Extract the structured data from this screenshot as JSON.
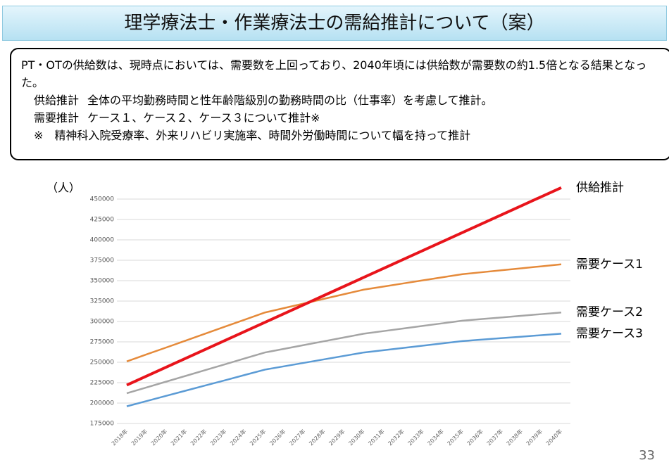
{
  "header": {
    "title": "理学療法士・作業療法士の需給推計について（案）"
  },
  "summary": {
    "lead": "PT・OTの供給数は、現時点においては、需要数を上回っており、2040年頃には供給数が需要数の約1.5倍となる結果となった。",
    "items": [
      {
        "label": "供給推計",
        "text": "全体の平均勤務時間と性年齢階級別の勤務時間の比（仕事率）を考慮して推計。"
      },
      {
        "label": "需要推計",
        "text": "ケース１、ケース２、ケース３について推計※"
      }
    ],
    "note": "※　精神科入院受療率、外来リハビリ実施率、時間外労働時間について幅を持って推計"
  },
  "chart_data": {
    "type": "line",
    "y_label": "（人）",
    "categories": [
      "2018年",
      "2019年",
      "2020年",
      "2021年",
      "2022年",
      "2023年",
      "2024年",
      "2025年",
      "2026年",
      "2027年",
      "2028年",
      "2029年",
      "2030年",
      "2031年",
      "2032年",
      "2033年",
      "2034年",
      "2035年",
      "2036年",
      "2037年",
      "2038年",
      "2039年",
      "2040年"
    ],
    "series": [
      {
        "name": "需要ケース1",
        "color": "#e58a3a",
        "values": [
          251000,
          259600,
          268100,
          276700,
          285300,
          293900,
          302400,
          311000,
          316600,
          322200,
          327800,
          333400,
          339000,
          342800,
          346600,
          350400,
          354200,
          358000,
          360400,
          362800,
          365200,
          367600,
          370000
        ]
      },
      {
        "name": "需要ケース2",
        "color": "#a5a5a5",
        "values": [
          212000,
          219100,
          226300,
          233400,
          240600,
          247700,
          254900,
          262000,
          266600,
          271200,
          275800,
          280400,
          285000,
          288200,
          291400,
          294600,
          297800,
          301000,
          303000,
          305000,
          307000,
          309000,
          311000
        ]
      },
      {
        "name": "需要ケース3",
        "color": "#5b9bd5",
        "values": [
          196000,
          202400,
          208900,
          215300,
          221700,
          228100,
          234600,
          241000,
          245200,
          249400,
          253600,
          257800,
          262000,
          264800,
          267600,
          270400,
          273200,
          276000,
          277800,
          279600,
          281400,
          283200,
          285000
        ]
      },
      {
        "name": "供給推計",
        "color": "#e8141b",
        "values": [
          222000,
          233000,
          244000,
          255000,
          266000,
          277000,
          288000,
          299000,
          310000,
          321000,
          332000,
          343000,
          354000,
          365000,
          376000,
          387000,
          398000,
          409000,
          420000,
          431000,
          442000,
          453000,
          464000
        ]
      }
    ],
    "ylim": [
      175000,
      450000
    ],
    "yticks": [
      175000,
      200000,
      225000,
      250000,
      275000,
      300000,
      325000,
      350000,
      375000,
      400000,
      425000,
      450000
    ],
    "grid": true
  },
  "page_number": "33"
}
